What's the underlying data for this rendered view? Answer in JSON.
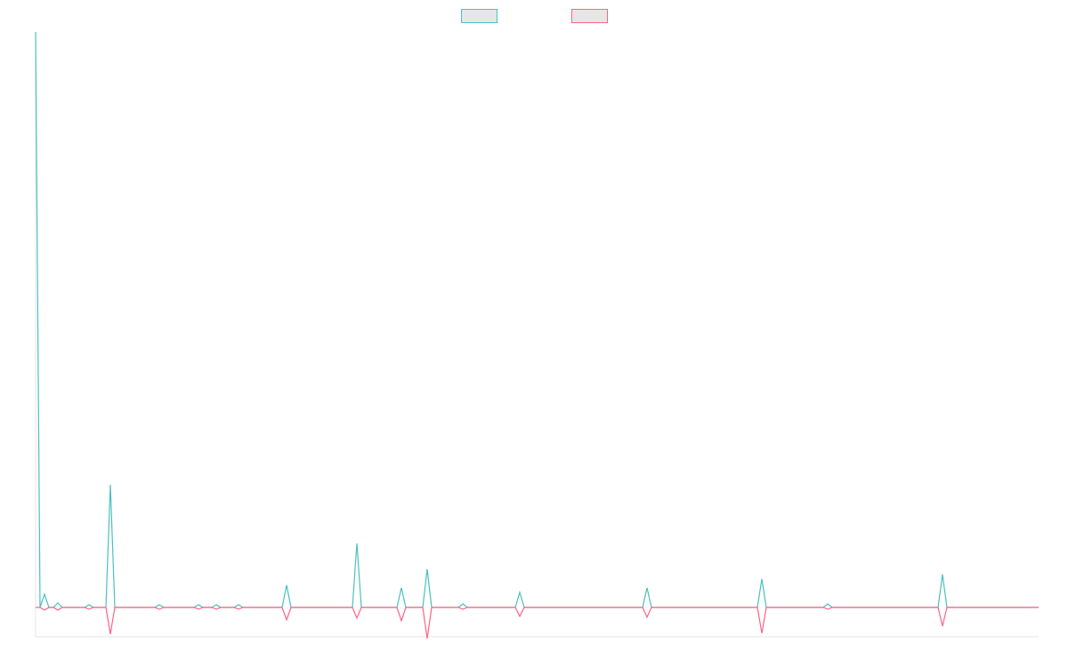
{
  "chart_data": {
    "type": "line",
    "x": [
      0,
      5,
      10,
      15,
      20,
      25,
      30,
      55,
      60,
      65,
      79,
      84,
      89,
      134,
      139,
      144,
      178,
      183,
      188,
      198,
      203,
      208,
      223,
      228,
      233,
      277,
      282,
      287,
      356,
      361,
      366,
      406,
      411,
      416,
      435,
      440,
      445,
      475,
      480,
      485,
      539,
      544,
      549,
      682,
      687,
      692,
      811,
      816,
      821,
      885,
      890,
      895,
      1014,
      1019,
      1024,
      1127
    ],
    "xlim": [
      0,
      1127
    ],
    "ylim": [
      -33,
      647
    ],
    "legend": "top",
    "series": [
      {
        "color": "#4bc0c0",
        "values": [
          647,
          0,
          15,
          0,
          0,
          5,
          0,
          0,
          3,
          0,
          0,
          138,
          0,
          0,
          3,
          0,
          0,
          3,
          0,
          0,
          3,
          0,
          0,
          3,
          0,
          0,
          25,
          0,
          0,
          72,
          0,
          0,
          22,
          0,
          0,
          43,
          0,
          0,
          4,
          0,
          0,
          17,
          0,
          0,
          22,
          0,
          0,
          32,
          0,
          0,
          4,
          0,
          0,
          37,
          0,
          0
        ]
      },
      {
        "color": "#ff6384",
        "values": [
          0,
          0,
          -3,
          0,
          0,
          -3,
          0,
          0,
          -2,
          0,
          0,
          -30,
          0,
          0,
          -2,
          0,
          0,
          -2,
          0,
          0,
          -2,
          0,
          0,
          -2,
          0,
          0,
          -14,
          0,
          0,
          -12,
          0,
          0,
          -15,
          0,
          0,
          -35,
          0,
          0,
          -2,
          0,
          0,
          -10,
          0,
          0,
          -11,
          0,
          0,
          -29,
          0,
          0,
          -2,
          0,
          0,
          -21,
          0,
          0
        ]
      }
    ]
  }
}
